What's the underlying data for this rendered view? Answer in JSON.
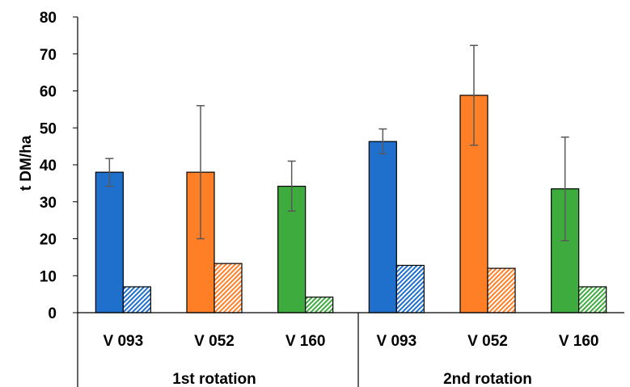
{
  "chart_data": {
    "type": "bar",
    "title": "",
    "ylabel": "t DM/ha",
    "ylim": [
      0,
      80
    ],
    "yticks": [
      0,
      10,
      20,
      30,
      40,
      50,
      60,
      70,
      80
    ],
    "grid": false,
    "groups": [
      {
        "label": "1st rotation",
        "categories": [
          {
            "label": "V 093",
            "color": "#1f6fcc",
            "solid": {
              "value": 38,
              "err_low": 34.2,
              "err_high": 41.7
            },
            "hatched": {
              "value": 7
            }
          },
          {
            "label": "V 052",
            "color": "#ff7f27",
            "solid": {
              "value": 38,
              "err_low": 20,
              "err_high": 56
            },
            "hatched": {
              "value": 13.3
            }
          },
          {
            "label": "V 160",
            "color": "#3eab3e",
            "solid": {
              "value": 34.2,
              "err_low": 27.5,
              "err_high": 41
            },
            "hatched": {
              "value": 4.2
            }
          }
        ]
      },
      {
        "label": "2nd rotation",
        "categories": [
          {
            "label": "V 093",
            "color": "#1f6fcc",
            "solid": {
              "value": 46.3,
              "err_low": 43,
              "err_high": 49.7
            },
            "hatched": {
              "value": 12.8
            }
          },
          {
            "label": "V 052",
            "color": "#ff7f27",
            "solid": {
              "value": 58.8,
              "err_low": 45.3,
              "err_high": 72.3
            },
            "hatched": {
              "value": 12
            }
          },
          {
            "label": "V 160",
            "color": "#3eab3e",
            "solid": {
              "value": 33.5,
              "err_low": 19.5,
              "err_high": 47.5
            },
            "hatched": {
              "value": 7
            }
          }
        ]
      }
    ]
  }
}
